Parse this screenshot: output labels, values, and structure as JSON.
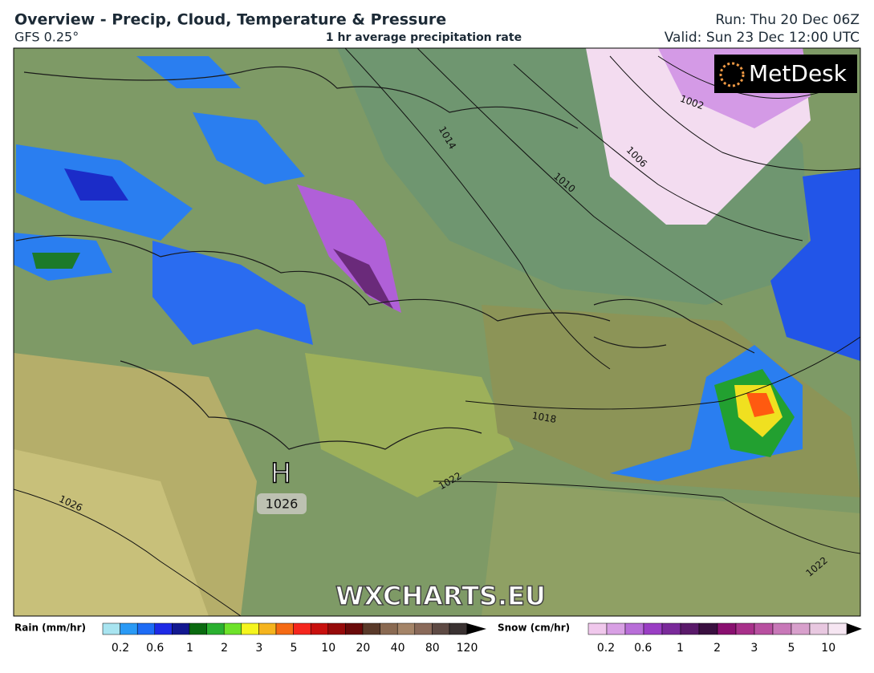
{
  "header": {
    "title": "Overview - Precip, Cloud, Temperature & Pressure",
    "model": "GFS 0.25°",
    "product": "1 hr average precipitation rate",
    "run": "Run: Thu 20 Dec 06Z",
    "valid": "Valid: Sun 23 Dec 12:00 UTC"
  },
  "map": {
    "logo": "MetDesk",
    "watermark": "WXCHARTS.EU",
    "high_label": "H",
    "high_pressure": 1026,
    "isobars": [
      1002,
      1006,
      1010,
      1014,
      1018,
      1022,
      1022,
      1026
    ]
  },
  "legend": {
    "rain_title": "Rain (mm/hr)",
    "rain_ticks": [
      0.2,
      0.6,
      1,
      2,
      3,
      5,
      10,
      20,
      40,
      80,
      120
    ],
    "snow_title": "Snow (cm/hr)",
    "snow_ticks": [
      0.2,
      0.6,
      1,
      2,
      3,
      5,
      10
    ]
  }
}
